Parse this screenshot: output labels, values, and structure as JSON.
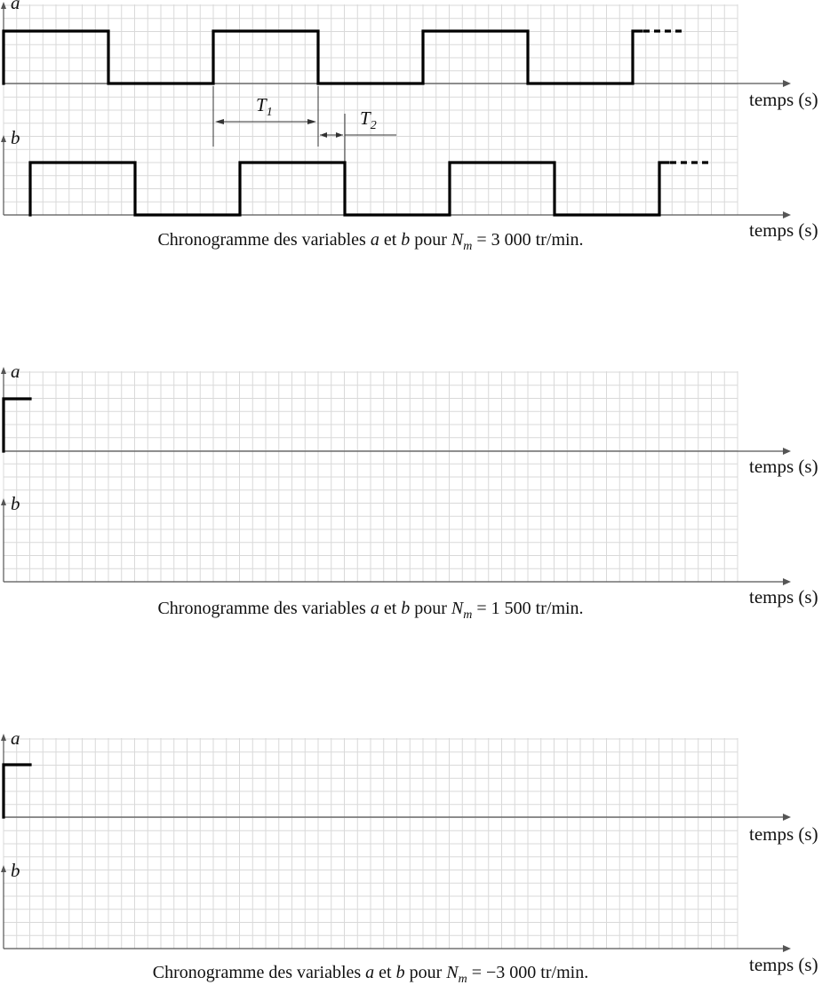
{
  "axis_label": "temps (s)",
  "panels": [
    {
      "id": "p1",
      "var_a": "a",
      "var_b": "b",
      "caption": {
        "pre": "Chronogramme des variables ",
        "a": "a",
        "mid1": " et ",
        "b": "b",
        "mid2": " pour ",
        "N": "N",
        "sub": "m",
        "eq": " = 3 000 tr/min."
      },
      "annotations": {
        "T1": "T",
        "T1_sub": "1",
        "T2": "T",
        "T2_sub": "2"
      }
    },
    {
      "id": "p2",
      "var_a": "a",
      "var_b": "b",
      "caption": {
        "pre": "Chronogramme des variables ",
        "a": "a",
        "mid1": " et ",
        "b": "b",
        "mid2": " pour ",
        "N": "N",
        "sub": "m",
        "eq": " = 1 500 tr/min."
      }
    },
    {
      "id": "p3",
      "var_a": "a",
      "var_b": "b",
      "caption": {
        "pre": "Chronogramme des variables ",
        "a": "a",
        "mid1": " et ",
        "b": "b",
        "mid2": " pour ",
        "N": "N",
        "sub": "m",
        "eq": " = −3 000 tr/min."
      }
    }
  ]
}
